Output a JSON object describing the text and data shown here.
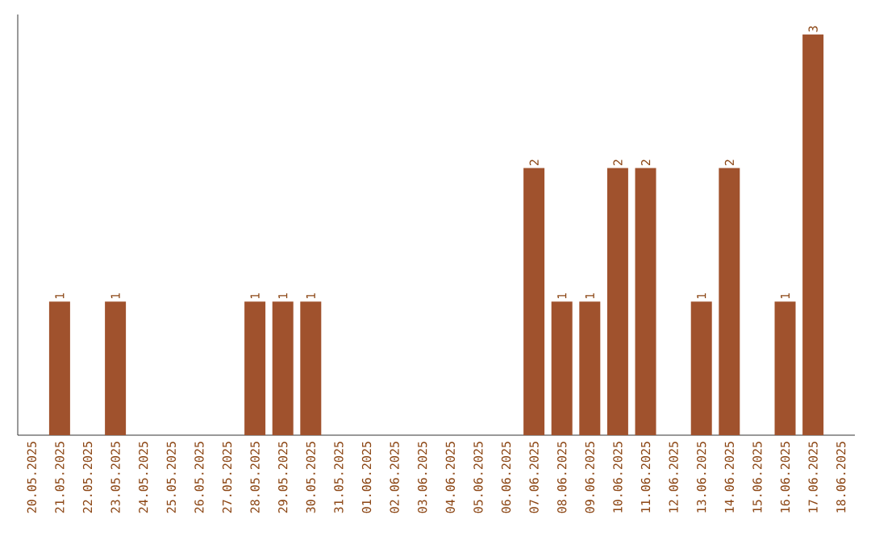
{
  "chart_data": {
    "type": "bar",
    "categories": [
      "20.05.2025",
      "21.05.2025",
      "22.05.2025",
      "23.05.2025",
      "24.05.2025",
      "25.05.2025",
      "26.05.2025",
      "27.05.2025",
      "28.05.2025",
      "29.05.2025",
      "30.05.2025",
      "31.05.2025",
      "01.06.2025",
      "02.06.2025",
      "03.06.2025",
      "04.06.2025",
      "05.06.2025",
      "06.06.2025",
      "07.06.2025",
      "08.06.2025",
      "09.06.2025",
      "10.06.2025",
      "11.06.2025",
      "12.06.2025",
      "13.06.2025",
      "14.06.2025",
      "15.06.2025",
      "16.06.2025",
      "17.06.2025",
      "18.06.2025"
    ],
    "values": [
      0,
      1,
      0,
      1,
      0,
      0,
      0,
      0,
      1,
      1,
      1,
      0,
      0,
      0,
      0,
      0,
      0,
      0,
      2,
      1,
      1,
      2,
      2,
      0,
      1,
      2,
      0,
      1,
      3,
      0
    ],
    "value_labels": [
      null,
      "1",
      null,
      "1",
      null,
      null,
      null,
      null,
      "1",
      "1",
      "1",
      null,
      null,
      null,
      null,
      null,
      null,
      null,
      "2",
      "1",
      "1",
      "2",
      "2",
      null,
      "1",
      "2",
      null,
      "1",
      "3",
      null
    ],
    "color": "#a0522d",
    "tick_labels": "x"
  }
}
